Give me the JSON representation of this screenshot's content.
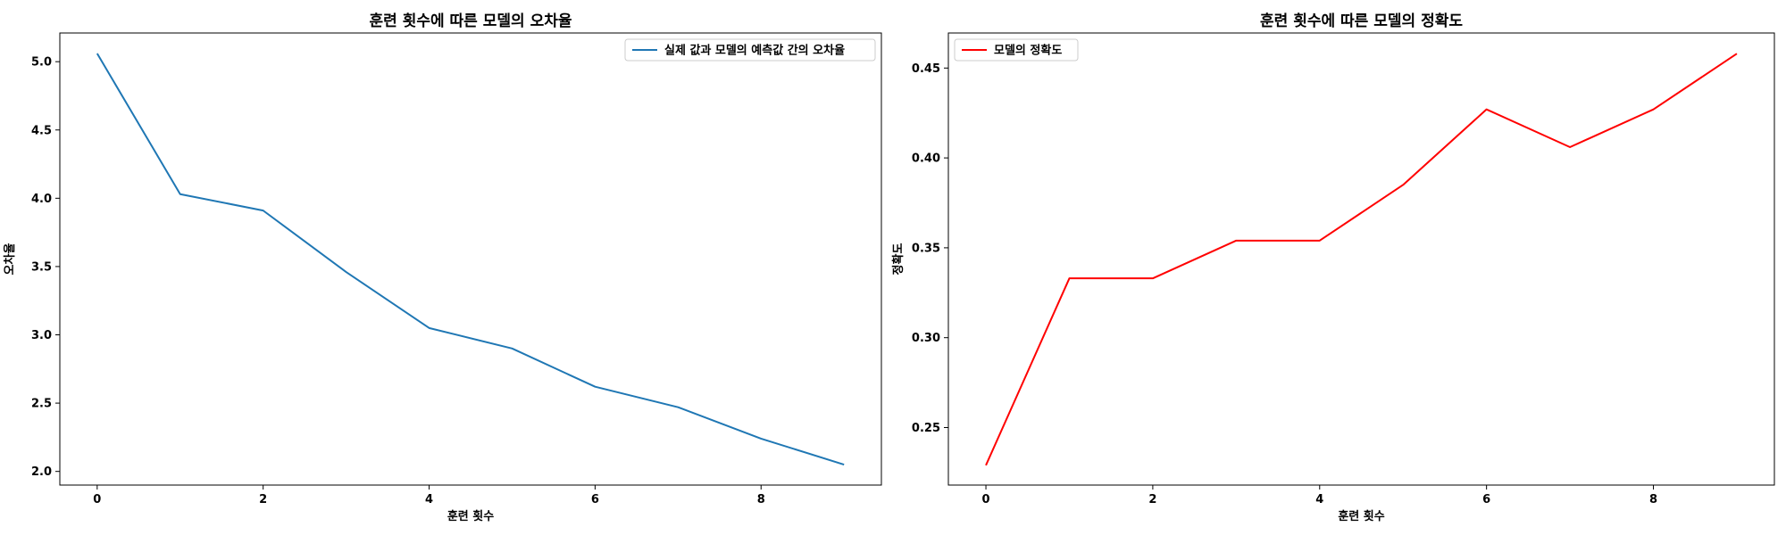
{
  "chart_data": [
    {
      "type": "line",
      "title": "훈련 횟수에 따른 모델의 오차율",
      "xlabel": "훈련 횟수",
      "ylabel": "오차율",
      "x": [
        0,
        1,
        2,
        3,
        4,
        5,
        6,
        7,
        8,
        9
      ],
      "xticks": [
        0,
        2,
        4,
        6,
        8
      ],
      "xlim": [
        -0.45,
        9.45
      ],
      "yticks": [
        2.0,
        2.5,
        3.0,
        3.5,
        4.0,
        4.5,
        5.0
      ],
      "ylim": [
        1.9,
        5.21
      ],
      "grid": false,
      "legend_position": "top-right",
      "series": [
        {
          "name": "실제 값과 모델의 예측값 간의 오차율",
          "color": "#1f77b4",
          "values": [
            5.06,
            4.03,
            3.91,
            3.46,
            3.05,
            2.9,
            2.62,
            2.47,
            2.24,
            2.05
          ]
        }
      ]
    },
    {
      "type": "line",
      "title": "훈련 횟수에 따른 모델의 정확도",
      "xlabel": "훈련 횟수",
      "ylabel": "정확도",
      "x": [
        0,
        1,
        2,
        3,
        4,
        5,
        6,
        7,
        8,
        9
      ],
      "xticks": [
        0,
        2,
        4,
        6,
        8
      ],
      "xlim": [
        -0.45,
        9.45
      ],
      "yticks": [
        0.25,
        0.3,
        0.35,
        0.4,
        0.45
      ],
      "ylim": [
        0.218,
        0.4695
      ],
      "grid": false,
      "legend_position": "top-left",
      "series": [
        {
          "name": "모델의 정확도",
          "color": "#ff0000",
          "values": [
            0.229,
            0.333,
            0.333,
            0.354,
            0.354,
            0.385,
            0.427,
            0.406,
            0.427,
            0.458
          ]
        }
      ]
    }
  ]
}
